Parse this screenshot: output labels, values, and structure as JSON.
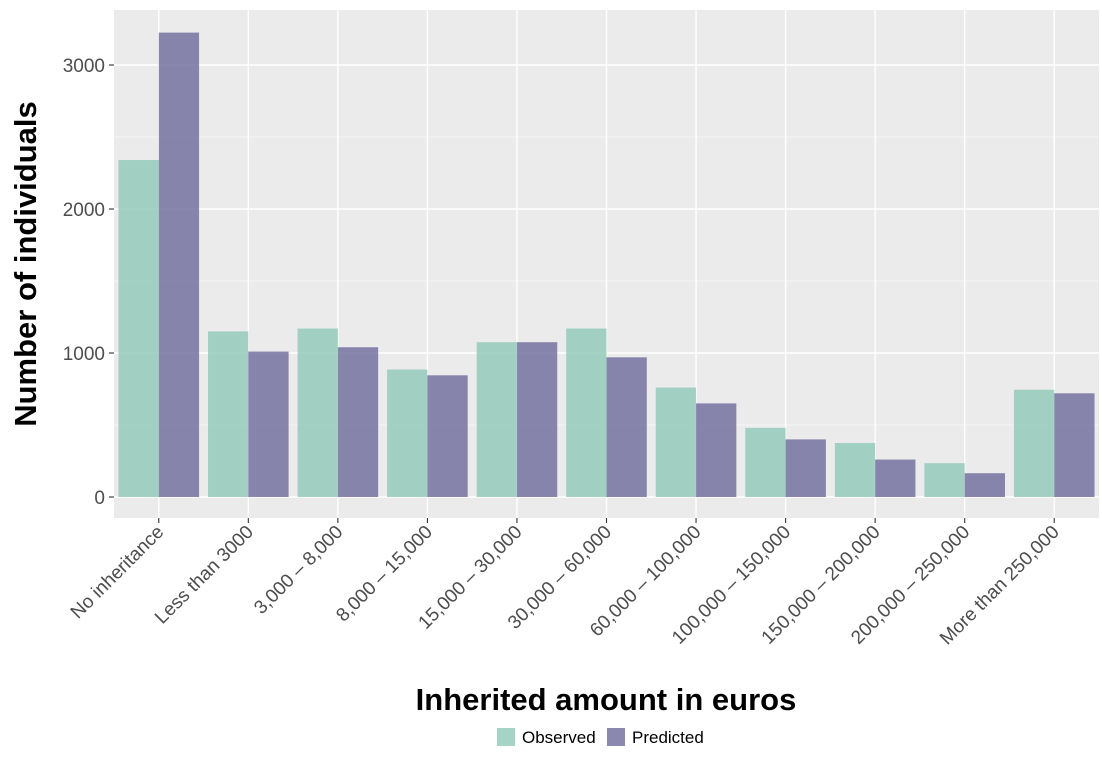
{
  "chart_data": {
    "type": "bar",
    "title": "",
    "xlabel": "Inherited amount in euros",
    "ylabel": "Number of individuals",
    "categories": [
      "No inheritance",
      "Less than 3000",
      "3,000 – 8,000",
      "8,000 – 15,000",
      "15,000 – 30,000",
      "30,000 – 60,000",
      "60,000 – 100,000",
      "100,000 – 150,000",
      "150,000 – 200,000",
      "200,000 – 250,000",
      "More than 250,000"
    ],
    "series": [
      {
        "name": "Observed",
        "color": "#8ec8b8",
        "values": [
          2340,
          1150,
          1170,
          885,
          1075,
          1170,
          760,
          480,
          375,
          235,
          745
        ]
      },
      {
        "name": "Predicted",
        "color": "#6e6a9c",
        "values": [
          3225,
          1010,
          1040,
          845,
          1075,
          970,
          650,
          400,
          260,
          165,
          720
        ]
      }
    ],
    "ylim": [
      0,
      3400
    ],
    "yticks": [
      0,
      1000,
      2000,
      3000
    ],
    "grid": true,
    "legend_position": "bottom",
    "background": "#ebebeb"
  }
}
